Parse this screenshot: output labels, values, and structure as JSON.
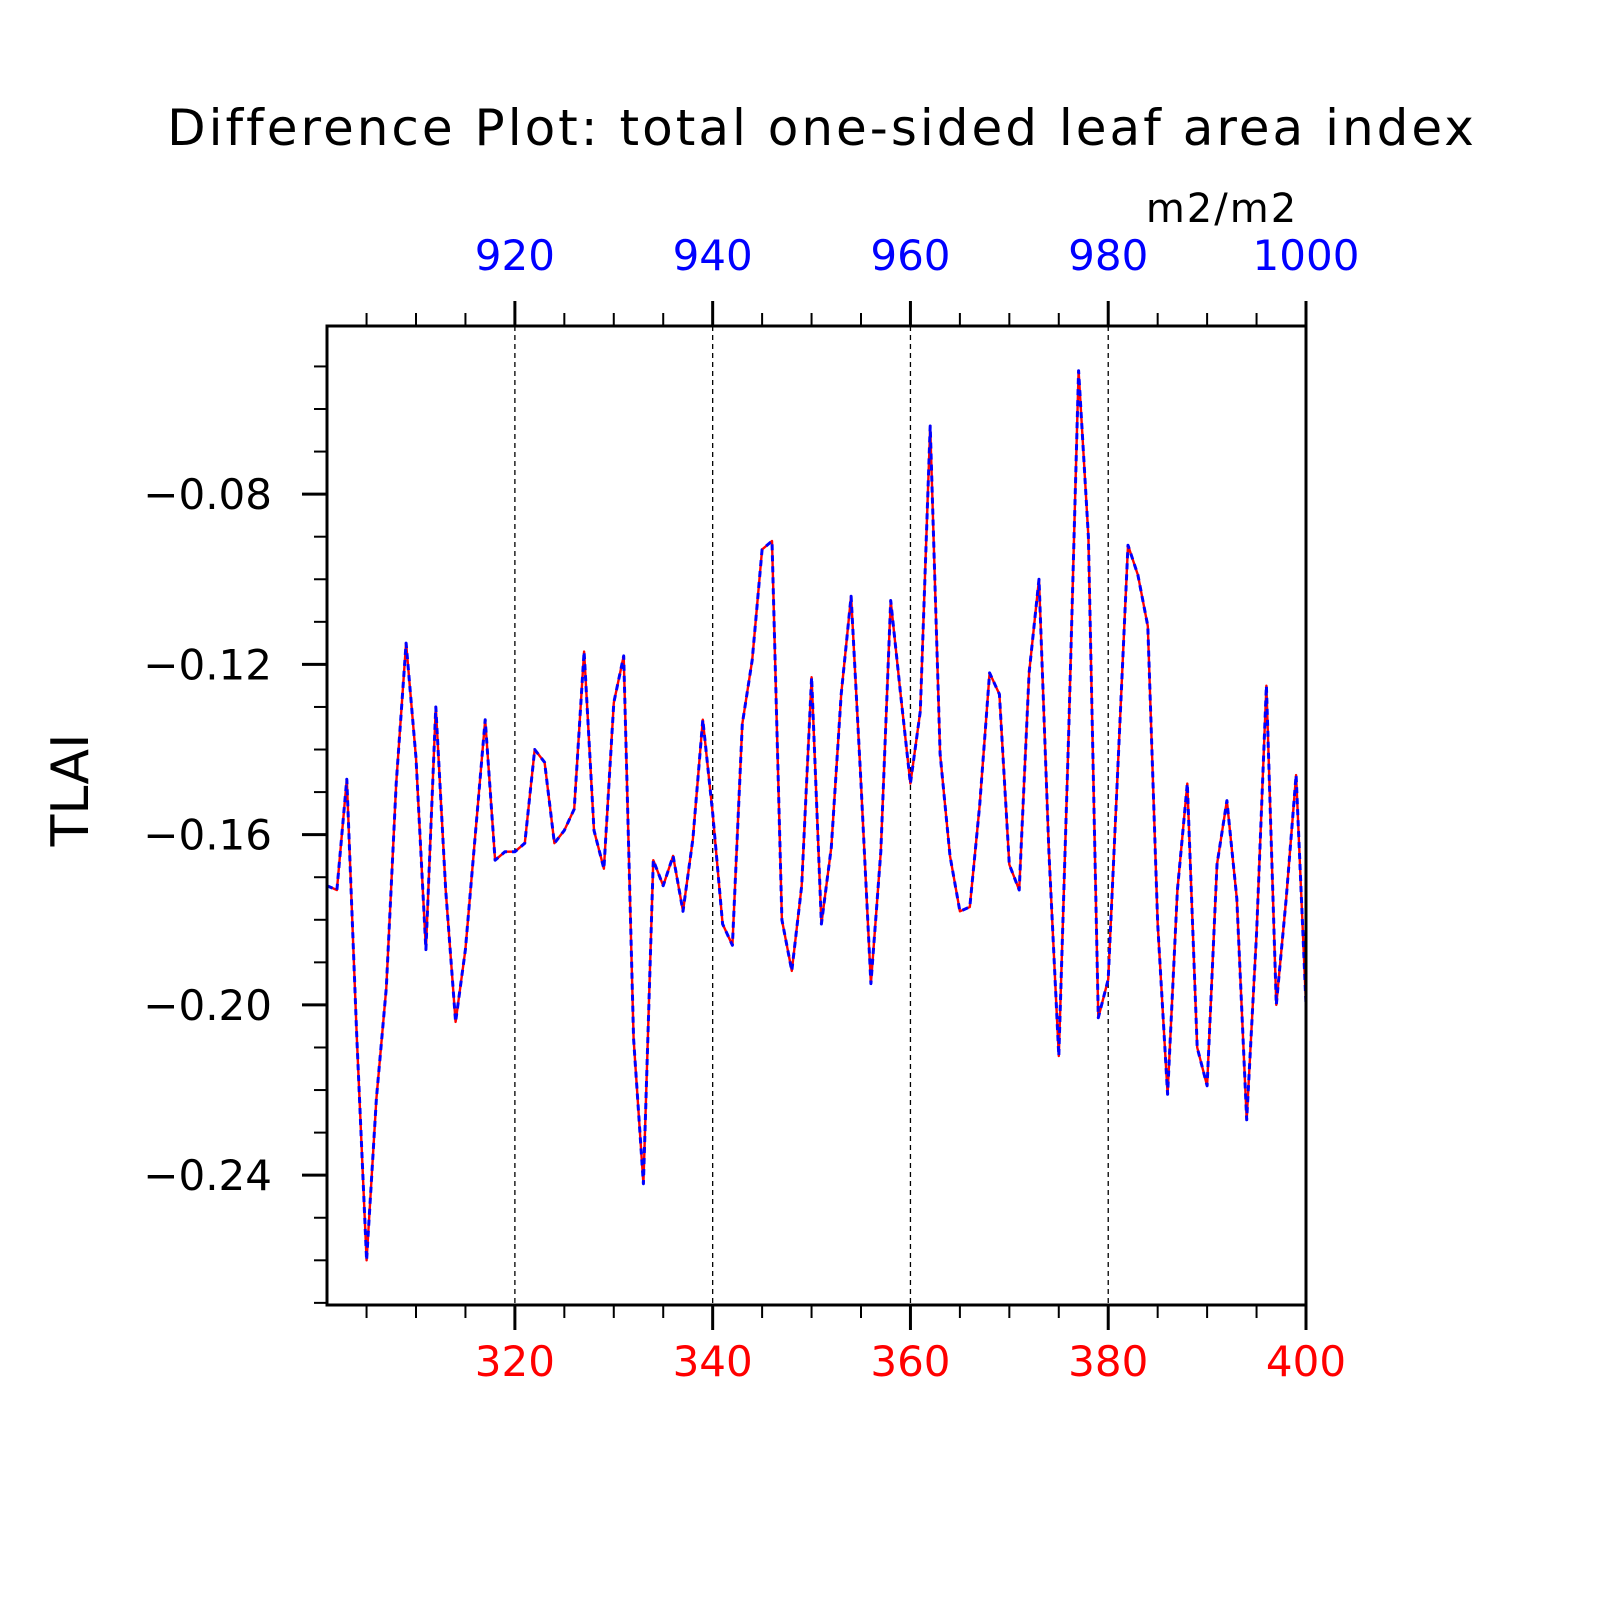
{
  "chart_data": {
    "type": "line",
    "title": "Difference Plot: total one-sided leaf area index",
    "units": "m2/m2",
    "ylabel": "TLAI",
    "xlabel": "",
    "x_bottom": {
      "range": [
        301,
        400
      ],
      "ticks": [
        320,
        340,
        360,
        380,
        400
      ],
      "tick_labels": [
        "320",
        "340",
        "360",
        "380",
        "400"
      ],
      "color": "#ff0000"
    },
    "x_top": {
      "range": [
        901,
        1000
      ],
      "ticks": [
        920,
        940,
        960,
        980,
        1000
      ],
      "tick_labels": [
        "920",
        "940",
        "960",
        "980",
        "1000"
      ],
      "color": "#0000ff"
    },
    "ylim": [
      -0.2705,
      -0.0405
    ],
    "y_ticks": [
      -0.08,
      -0.12,
      -0.16,
      -0.2,
      -0.24
    ],
    "y_tick_labels": [
      "−0.08",
      "−0.12",
      "−0.16",
      "−0.20",
      "−0.24"
    ],
    "grid": "vertical dashed at major x ticks",
    "series": [
      {
        "color": "#ff0000",
        "style": "solid",
        "x": [
          301,
          302,
          303,
          304,
          305,
          306,
          307,
          308,
          309,
          310,
          311,
          312,
          313,
          314,
          315,
          316,
          317,
          318,
          319,
          320,
          321,
          322,
          323,
          324,
          325,
          326,
          327,
          328,
          329,
          330,
          331,
          332,
          333,
          334,
          335,
          336,
          337,
          338,
          339,
          340,
          341,
          342,
          343,
          344,
          345,
          346,
          347,
          348,
          349,
          350,
          351,
          352,
          353,
          354,
          355,
          356,
          357,
          358,
          359,
          360,
          361,
          362,
          363,
          364,
          365,
          366,
          367,
          368,
          369,
          370,
          371,
          372,
          373,
          374,
          375,
          376,
          377,
          378,
          379,
          380,
          381,
          382,
          383,
          384,
          385,
          386,
          387,
          388,
          389,
          390,
          391,
          392,
          393,
          394,
          395,
          396,
          397,
          398,
          399,
          400
        ],
        "values": [
          -0.172,
          -0.173,
          -0.147,
          -0.207,
          -0.26,
          -0.222,
          -0.196,
          -0.148,
          -0.115,
          -0.142,
          -0.187,
          -0.13,
          -0.173,
          -0.204,
          -0.187,
          -0.16,
          -0.133,
          -0.166,
          -0.164,
          -0.164,
          -0.162,
          -0.14,
          -0.143,
          -0.162,
          -0.159,
          -0.154,
          -0.117,
          -0.159,
          -0.168,
          -0.129,
          -0.118,
          -0.208,
          -0.242,
          -0.166,
          -0.172,
          -0.165,
          -0.178,
          -0.161,
          -0.133,
          -0.155,
          -0.181,
          -0.186,
          -0.134,
          -0.119,
          -0.093,
          -0.091,
          -0.18,
          -0.192,
          -0.172,
          -0.123,
          -0.181,
          -0.163,
          -0.127,
          -0.104,
          -0.148,
          -0.195,
          -0.164,
          -0.105,
          -0.127,
          -0.148,
          -0.131,
          -0.064,
          -0.141,
          -0.165,
          -0.178,
          -0.177,
          -0.153,
          -0.122,
          -0.127,
          -0.167,
          -0.173,
          -0.122,
          -0.1,
          -0.164,
          -0.212,
          -0.136,
          -0.051,
          -0.09,
          -0.203,
          -0.194,
          -0.143,
          -0.092,
          -0.099,
          -0.111,
          -0.181,
          -0.221,
          -0.173,
          -0.148,
          -0.21,
          -0.219,
          -0.167,
          -0.152,
          -0.175,
          -0.227,
          -0.183,
          -0.125,
          -0.2,
          -0.175,
          -0.146,
          -0.2
        ]
      },
      {
        "color": "#0000ff",
        "style": "dashed",
        "x": [
          901,
          902,
          903,
          904,
          905,
          906,
          907,
          908,
          909,
          910,
          911,
          912,
          913,
          914,
          915,
          916,
          917,
          918,
          919,
          920,
          921,
          922,
          923,
          924,
          925,
          926,
          927,
          928,
          929,
          930,
          931,
          932,
          933,
          934,
          935,
          936,
          937,
          938,
          939,
          940,
          941,
          942,
          943,
          944,
          945,
          946,
          947,
          948,
          949,
          950,
          951,
          952,
          953,
          954,
          955,
          956,
          957,
          958,
          959,
          960,
          961,
          962,
          963,
          964,
          965,
          966,
          967,
          968,
          969,
          970,
          971,
          972,
          973,
          974,
          975,
          976,
          977,
          978,
          979,
          980,
          981,
          982,
          983,
          984,
          985,
          986,
          987,
          988,
          989,
          990,
          991,
          992,
          993,
          994,
          995,
          996,
          997,
          998,
          999,
          1000
        ],
        "values": [
          -0.172,
          -0.173,
          -0.147,
          -0.207,
          -0.26,
          -0.222,
          -0.196,
          -0.148,
          -0.115,
          -0.142,
          -0.187,
          -0.13,
          -0.173,
          -0.204,
          -0.187,
          -0.16,
          -0.133,
          -0.166,
          -0.164,
          -0.164,
          -0.162,
          -0.14,
          -0.143,
          -0.162,
          -0.159,
          -0.154,
          -0.117,
          -0.159,
          -0.168,
          -0.129,
          -0.118,
          -0.208,
          -0.242,
          -0.166,
          -0.172,
          -0.165,
          -0.178,
          -0.161,
          -0.133,
          -0.155,
          -0.181,
          -0.186,
          -0.134,
          -0.119,
          -0.093,
          -0.091,
          -0.18,
          -0.192,
          -0.172,
          -0.123,
          -0.181,
          -0.163,
          -0.127,
          -0.104,
          -0.148,
          -0.195,
          -0.164,
          -0.105,
          -0.127,
          -0.148,
          -0.131,
          -0.064,
          -0.141,
          -0.165,
          -0.178,
          -0.177,
          -0.153,
          -0.122,
          -0.127,
          -0.167,
          -0.173,
          -0.122,
          -0.1,
          -0.164,
          -0.212,
          -0.136,
          -0.051,
          -0.09,
          -0.203,
          -0.194,
          -0.143,
          -0.092,
          -0.099,
          -0.111,
          -0.181,
          -0.221,
          -0.173,
          -0.148,
          -0.21,
          -0.219,
          -0.167,
          -0.152,
          -0.175,
          -0.227,
          -0.183,
          -0.125,
          -0.2,
          -0.175,
          -0.146,
          -0.2
        ]
      }
    ]
  }
}
